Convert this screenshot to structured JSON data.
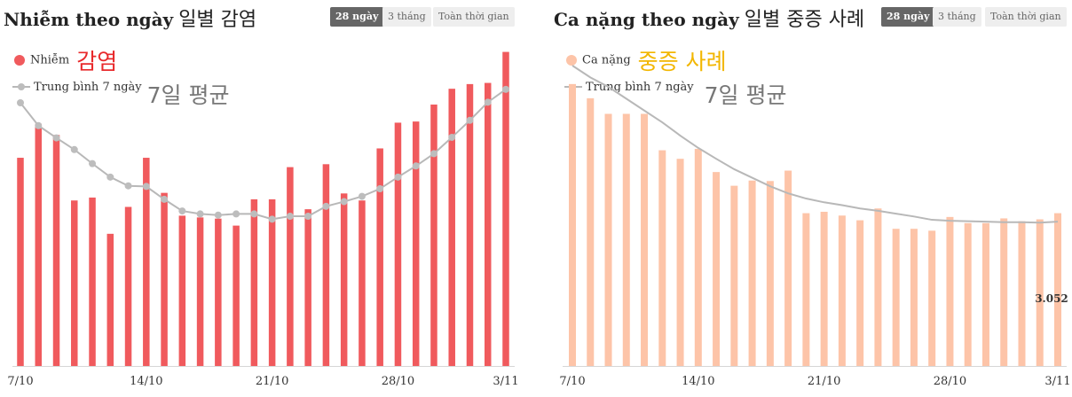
{
  "colors": {
    "cases_bar": "#f05a5d",
    "severe_bar": "#fdc4a8",
    "avg_line": "#b8b8b8",
    "avg_point": "#bdbdbd",
    "axis": "#d6d6d6"
  },
  "left": {
    "title_vi": "Nhiễm theo ngày",
    "title_ko": "일별 감염",
    "buttons": [
      "28 ngày",
      "3 tháng",
      "Toàn thời gian"
    ],
    "legend_series": "Nhiễm",
    "legend_series_ko": "감염",
    "legend_avg": "Trung bình 7 ngày",
    "legend_avg_ko": "7일 평균"
  },
  "right": {
    "title_vi": "Ca nặng theo ngày",
    "title_ko": "일별 중증 사례",
    "buttons": [
      "28 ngày",
      "3 tháng",
      "Toàn thời gian"
    ],
    "legend_series": "Ca nặng",
    "legend_series_ko": "중증 사례",
    "legend_avg": "Trung bình 7 ngày",
    "legend_avg_ko": "7일 평균"
  },
  "chart_data": [
    {
      "type": "bar",
      "title": "Nhiễm theo ngày",
      "x_tick_labels": [
        "7/10",
        "14/10",
        "21/10",
        "28/10",
        "3/11"
      ],
      "categories": [
        "7/10",
        "8/10",
        "9/10",
        "10/10",
        "11/10",
        "12/10",
        "13/10",
        "14/10",
        "15/10",
        "16/10",
        "17/10",
        "18/10",
        "19/10",
        "20/10",
        "21/10",
        "22/10",
        "23/10",
        "24/10",
        "25/10",
        "26/10",
        "27/10",
        "28/10",
        "29/10",
        "30/10",
        "31/10",
        "1/11",
        "2/11",
        "3/11"
      ],
      "series": [
        {
          "name": "Nhiễm",
          "values": [
            3560,
            4140,
            3950,
            2830,
            2880,
            2260,
            2720,
            3560,
            2960,
            2570,
            2540,
            2520,
            2400,
            2850,
            2850,
            3400,
            2680,
            3450,
            2950,
            2830,
            3720,
            4160,
            4180,
            4470,
            4740,
            4820,
            4840,
            5370
          ]
        },
        {
          "name": "Trung bình 7 ngày",
          "values": [
            4500,
            4110,
            3900,
            3700,
            3460,
            3230,
            3080,
            3070,
            2850,
            2650,
            2600,
            2580,
            2600,
            2600,
            2510,
            2560,
            2560,
            2730,
            2810,
            2900,
            3030,
            3230,
            3420,
            3630,
            3910,
            4200,
            4510,
            4730
          ]
        }
      ],
      "ylim": [
        0,
        5500
      ]
    },
    {
      "type": "bar",
      "title": "Ca nặng theo ngày",
      "x_tick_labels": [
        "7/10",
        "14/10",
        "21/10",
        "28/10",
        "3/11"
      ],
      "categories": [
        "7/10",
        "8/10",
        "9/10",
        "10/10",
        "11/10",
        "12/10",
        "13/10",
        "14/10",
        "15/10",
        "16/10",
        "17/10",
        "18/10",
        "19/10",
        "20/10",
        "21/10",
        "22/10",
        "23/10",
        "24/10",
        "25/10",
        "26/10",
        "27/10",
        "28/10",
        "29/10",
        "30/10",
        "31/10",
        "1/11",
        "2/11",
        "3/11"
      ],
      "series": [
        {
          "name": "Ca nặng",
          "values": [
            5960,
            5660,
            5330,
            5330,
            5330,
            4560,
            4380,
            4590,
            4100,
            3810,
            3920,
            3910,
            4130,
            3230,
            3260,
            3180,
            3080,
            3330,
            2900,
            2900,
            2860,
            3150,
            3020,
            3020,
            3120,
            3060,
            3100,
            3230
          ]
        },
        {
          "name": "Trung bình 7 ngày",
          "values": [
            6350,
            6100,
            5900,
            5650,
            5400,
            5150,
            4870,
            4610,
            4380,
            4160,
            3980,
            3800,
            3650,
            3540,
            3460,
            3400,
            3330,
            3280,
            3220,
            3160,
            3090,
            3070,
            3060,
            3050,
            3040,
            3040,
            3030,
            3052
          ]
        }
      ],
      "data_label": "3.052",
      "ylim": [
        0,
        6800
      ]
    }
  ]
}
